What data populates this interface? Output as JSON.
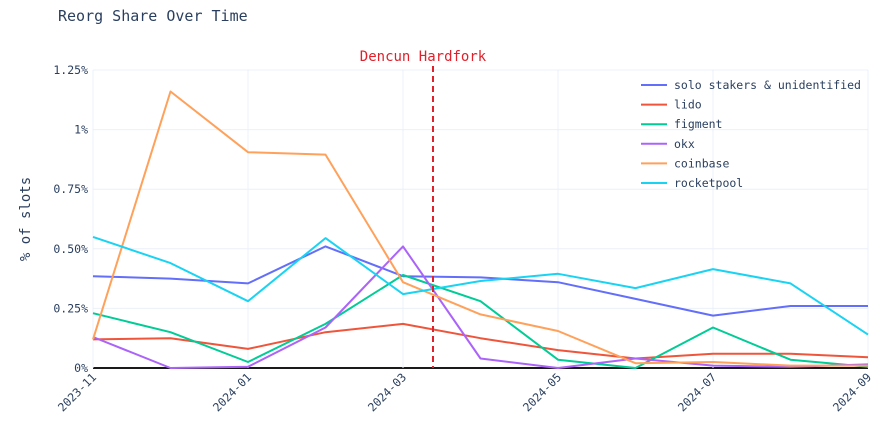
{
  "chart_data": {
    "type": "line",
    "title": "Reorg Share Over Time",
    "xlabel": "",
    "ylabel": "% of slots",
    "x": [
      "2023-11",
      "2023-12",
      "2024-01",
      "2024-02",
      "2024-03",
      "2024-04",
      "2024-05",
      "2024-06",
      "2024-07",
      "2024-08",
      "2024-09"
    ],
    "x_ticks": [
      "2023-11",
      "2024-01",
      "2024-03",
      "2024-05",
      "2024-07",
      "2024-09"
    ],
    "y_ticks": [
      "0%",
      "0.25%",
      "0.50%",
      "0.75%",
      "1%",
      "1.25%"
    ],
    "ylim": [
      0,
      1.25
    ],
    "grid": true,
    "legend_position": "top-right",
    "series": [
      {
        "name": "solo stakers & unidentified",
        "color": "#636efa",
        "values": [
          0.385,
          0.375,
          0.355,
          0.51,
          0.385,
          0.38,
          0.36,
          0.29,
          0.22,
          0.26,
          0.26
        ]
      },
      {
        "name": "lido",
        "color": "#ef553b",
        "values": [
          0.12,
          0.125,
          0.08,
          0.15,
          0.185,
          0.125,
          0.075,
          0.04,
          0.06,
          0.06,
          0.045
        ]
      },
      {
        "name": "figment",
        "color": "#00cc96",
        "values": [
          0.23,
          0.15,
          0.025,
          0.185,
          0.39,
          0.28,
          0.035,
          0.0,
          0.17,
          0.035,
          0.005
        ]
      },
      {
        "name": "okx",
        "color": "#ab63fa",
        "values": [
          0.13,
          0.0,
          0.005,
          0.17,
          0.51,
          0.04,
          0.0,
          0.04,
          0.01,
          0.005,
          0.015
        ]
      },
      {
        "name": "coinbase",
        "color": "#ffa15a",
        "values": [
          0.12,
          1.16,
          0.905,
          0.895,
          0.36,
          0.225,
          0.155,
          0.02,
          0.025,
          0.01,
          0.01
        ]
      },
      {
        "name": "rocketpool",
        "color": "#19d3f3",
        "values": [
          0.55,
          0.44,
          0.28,
          0.545,
          0.31,
          0.365,
          0.395,
          0.335,
          0.415,
          0.355,
          0.14
        ]
      }
    ],
    "annotations": [
      {
        "text": "Dencun Hardfork",
        "x": "2024-03-13",
        "color": "#e0202a",
        "style": "dashed vertical line"
      }
    ]
  }
}
